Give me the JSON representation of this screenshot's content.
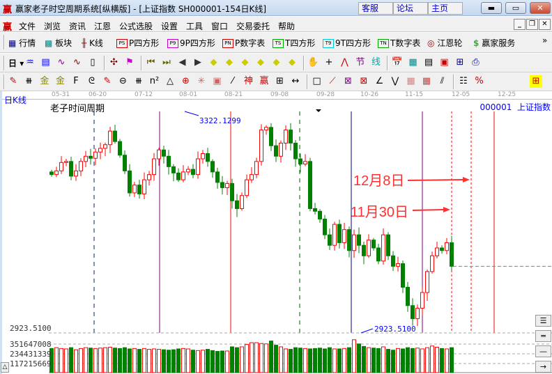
{
  "window": {
    "title": "赢家老子时空周期系统[纵横版] - [上证指数  SH000001-154日K线]",
    "buttons": [
      "客服",
      "论坛",
      "主页"
    ],
    "logo": "赢"
  },
  "menu": [
    "文件",
    "浏览",
    "资讯",
    "江恩",
    "公式选股",
    "设置",
    "工具",
    "窗口",
    "交易委托",
    "帮助"
  ],
  "toolbar1": [
    {
      "label": "行情",
      "icon": "quote-table-icon"
    },
    {
      "label": "板块",
      "icon": "sector-grid-icon"
    },
    {
      "label": "K线",
      "icon": "kline-icon"
    },
    {
      "label": "P四方形",
      "icon": "ps-icon",
      "tag": "PS"
    },
    {
      "label": "9P四方形",
      "icon": "p9-icon",
      "tag": "P9"
    },
    {
      "label": "P数字表",
      "icon": "pn-icon",
      "tag": "PN"
    },
    {
      "label": "T四方形",
      "icon": "ts-icon",
      "tag": "TS"
    },
    {
      "label": "9T四方形",
      "icon": "t9-icon",
      "tag": "T9"
    },
    {
      "label": "T数字表",
      "icon": "tn-icon",
      "tag": "TN"
    },
    {
      "label": "江恩轮",
      "icon": "gann-wheel-icon"
    },
    {
      "label": "赢家服务",
      "icon": "dollar-icon"
    }
  ],
  "toolbar2": {
    "period": "日"
  },
  "chart": {
    "period_label": "日K线",
    "title": "老子时间周期",
    "code": "000001",
    "name": "上证指数",
    "dates": [
      "05-31",
      "06-20",
      "07-12",
      "08-01",
      "08-21",
      "09-08",
      "09-28",
      "10-26",
      "11-15",
      "12-05",
      "12-25"
    ],
    "high_label": "3322.1299",
    "low_label": "2923.5100",
    "axis_low": "2923.5100",
    "volume_ticks": [
      "351647008",
      "234431339",
      "117215669"
    ],
    "annotations": [
      "12月8日",
      "11月30日"
    ],
    "colors": {
      "up": "#ff0000",
      "down": "#008000",
      "ref_line": "#808080"
    },
    "closes": [
      3215,
      3222,
      3238,
      3240,
      3212,
      3222,
      3240,
      3250,
      3246,
      3258,
      3265,
      3272,
      3298,
      3278,
      3252,
      3222,
      3180,
      3195,
      3178,
      3205,
      3215,
      3245,
      3262,
      3250,
      3230,
      3218,
      3205,
      3220,
      3225,
      3215,
      3245,
      3255,
      3240,
      3220,
      3200,
      3190,
      3198,
      3165,
      3150,
      3175,
      3205,
      3215,
      3240,
      3300,
      3305,
      3270,
      3250,
      3275,
      3300,
      3275,
      3245,
      3235,
      3240,
      3150,
      3145,
      3130,
      3100,
      3080,
      3120,
      3085,
      3110,
      3070,
      3100,
      3080,
      3060,
      3090,
      3075,
      3050,
      3100,
      3060,
      3040,
      3045,
      3000,
      2965,
      2940,
      2960,
      2990,
      3030,
      3060,
      3075,
      3070,
      3085,
      3040
    ],
    "volumes": [
      290,
      300,
      290,
      285,
      300,
      275,
      290,
      300,
      295,
      290,
      295,
      300,
      305,
      295,
      290,
      300,
      285,
      290,
      280,
      290,
      280,
      285,
      280,
      275,
      270,
      275,
      285,
      290,
      285,
      270,
      265,
      270,
      280,
      265,
      255,
      260,
      260,
      310,
      300,
      310,
      340,
      360,
      360,
      350,
      345,
      380,
      330,
      310,
      285,
      280,
      300,
      295,
      290,
      285,
      290,
      295,
      285,
      300,
      285,
      285,
      290,
      300,
      395,
      345,
      315,
      300,
      295,
      290,
      310,
      280,
      270,
      290,
      285,
      300,
      290,
      295,
      285,
      300,
      320,
      305,
      290,
      285,
      300
    ]
  }
}
